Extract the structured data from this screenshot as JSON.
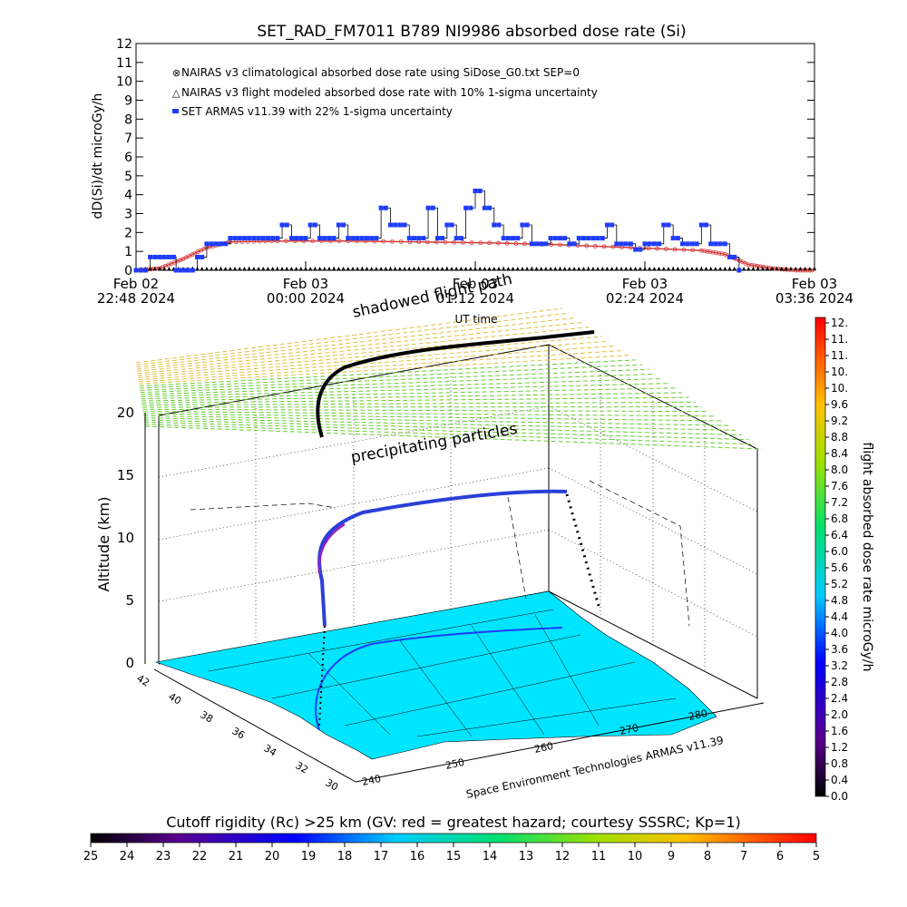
{
  "chart_data": [
    {
      "type": "line",
      "title": "SET_RAD_FM7011   B789 NI9986 absorbed dose rate (Si)",
      "ylabel": "dD(Si)/dt microGy/h",
      "xlabel": "UT time",
      "ylim": [
        0,
        12
      ],
      "y_ticks": [
        "0",
        "1",
        "2",
        "3",
        "4",
        "5",
        "6",
        "7",
        "8",
        "9",
        "10",
        "11",
        "12"
      ],
      "x_ticks": [
        {
          "line1": "Feb 02",
          "line2": "22:48 2024"
        },
        {
          "line1": "Feb 03",
          "line2": "00:00 2024"
        },
        {
          "line1": "Feb 03",
          "line2": "01:12 2024"
        },
        {
          "line1": "Feb 03",
          "line2": "02:24 2024"
        },
        {
          "line1": "Feb 03",
          "line2": "03:36 2024"
        }
      ],
      "x_range_minutes": [
        0,
        288
      ],
      "legend": [
        {
          "label": "NAIRAS v3 climatological absorbed dose rate using SiDose_G0.txt SEP=0",
          "marker": "⊗",
          "color": "#d23c3c"
        },
        {
          "label": "NAIRAS v3 flight modeled absorbed dose rate with 10% 1-sigma uncertainty",
          "marker": "△",
          "color": "#000000"
        },
        {
          "label": "SET ARMAS v11.39 with 22% 1-sigma uncertainty",
          "marker": "■",
          "color": "#1e3cff"
        }
      ],
      "series": [
        {
          "name": "NAIRAS v3 climatological absorbed dose rate using SiDose_G0.txt SEP=0",
          "x": [
            0,
            10,
            20,
            30,
            40,
            60,
            90,
            120,
            150,
            180,
            210,
            240,
            250,
            260,
            270,
            280,
            288
          ],
          "y": [
            0,
            0.1,
            0.6,
            1.2,
            1.5,
            1.55,
            1.55,
            1.5,
            1.45,
            1.35,
            1.2,
            1.05,
            0.85,
            0.3,
            0.1,
            0,
            0
          ]
        },
        {
          "name": "NAIRAS v3 flight modeled absorbed dose rate with 10% 1-sigma uncertainty",
          "x": [
            0,
            288
          ],
          "y": [
            0,
            0
          ]
        },
        {
          "name": "SET ARMAS v11.39 with 22% 1-sigma uncertainty",
          "x": [
            0,
            6,
            12,
            17,
            22,
            26,
            30,
            36,
            40,
            46,
            52,
            58,
            62,
            66,
            70,
            74,
            78,
            82,
            86,
            90,
            94,
            98,
            100,
            104,
            108,
            112,
            116,
            120,
            124,
            128,
            132,
            136,
            140,
            144,
            148,
            152,
            156,
            160,
            164,
            168,
            172,
            176,
            180,
            184,
            188,
            192,
            196,
            200,
            204,
            208,
            212,
            216,
            220,
            224,
            228,
            232,
            236,
            240,
            244,
            248,
            252,
            256
          ],
          "y": [
            0,
            0.7,
            0.7,
            0,
            0,
            0.7,
            1.4,
            1.4,
            1.7,
            1.7,
            1.7,
            1.7,
            2.4,
            1.7,
            1.7,
            2.4,
            1.7,
            1.7,
            2.4,
            1.7,
            1.7,
            1.7,
            1.7,
            3.3,
            2.4,
            2.4,
            1.7,
            1.7,
            3.3,
            1.7,
            2.4,
            1.7,
            3.3,
            4.2,
            3.3,
            2.4,
            1.7,
            1.7,
            2.4,
            1.4,
            1.4,
            1.7,
            1.7,
            1.4,
            1.7,
            1.7,
            1.7,
            2.4,
            1.4,
            1.4,
            1.1,
            1.4,
            1.4,
            2.4,
            1.7,
            1.4,
            1.4,
            2.4,
            1.4,
            1.4,
            0.7,
            0
          ]
        }
      ]
    },
    {
      "type": "scatter",
      "zlabel": "Altitude (km)",
      "z_ticks": [
        "0",
        "5",
        "10",
        "15",
        "20"
      ],
      "lat_ticks": [
        "30",
        "32",
        "34",
        "36",
        "38",
        "40",
        "42"
      ],
      "lon_ticks": [
        "240",
        "250",
        "260",
        "270",
        "280"
      ],
      "annotations": {
        "shadow": "shadowed flight path",
        "particles": "precipitating particles",
        "credit": "Space Environment Technologies ARMAS v11.39"
      }
    }
  ],
  "colorbar_right": {
    "label": "flight absorbed dose rate microGy/h",
    "ticks": [
      "12.",
      "11.",
      "11.",
      "10.",
      "10.",
      "9.6",
      "9.2",
      "8.8",
      "8.4",
      "8.0",
      "7.6",
      "7.2",
      "6.8",
      "6.4",
      "6.0",
      "5.6",
      "5.2",
      "4.8",
      "4.4",
      "4.0",
      "3.6",
      "3.2",
      "2.8",
      "2.4",
      "2.0",
      "1.6",
      "1.2",
      "0.8",
      "0.4",
      "0.0"
    ]
  },
  "colorbar_bottom": {
    "label": "Cutoff rigidity (Rc) >25 km (GV: red = greatest hazard; courtesy SSSRC; Kp=1)",
    "ticks": [
      "25",
      "24",
      "23",
      "22",
      "21",
      "20",
      "19",
      "18",
      "17",
      "16",
      "15",
      "14",
      "13",
      "12",
      "11",
      "10",
      "9",
      "8",
      "7",
      "6",
      "5"
    ]
  },
  "colors": {
    "nairas_clim": "#d23c3c",
    "armas": "#1e3cff",
    "map_fill": "#00e5ff",
    "grid_green": "#66cc33",
    "grid_yellow": "#e0c040"
  }
}
